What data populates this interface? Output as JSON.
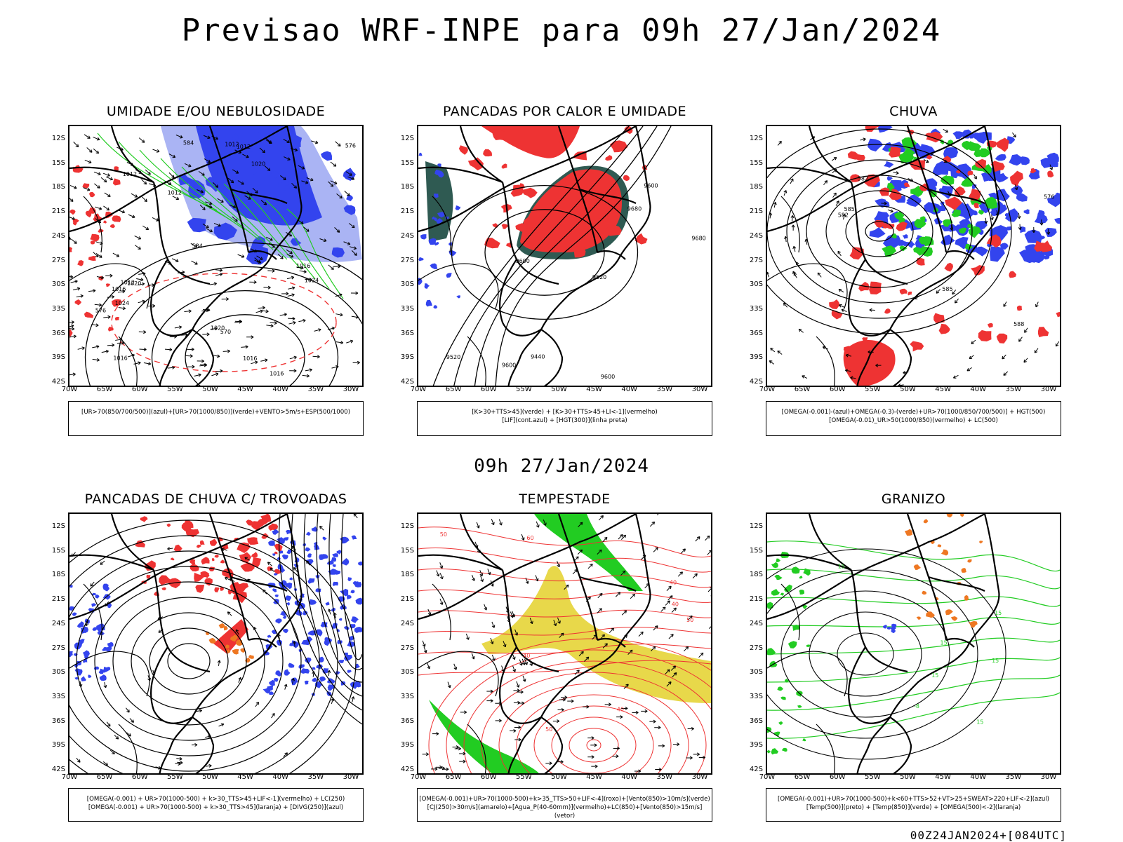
{
  "title": "Previsao WRF-INPE  para 09h 27/Jan/2024",
  "mid_title": "09h 27/Jan/2024",
  "footer": "00Z24JAN2024+[084UTC]",
  "y_ticks": [
    "12S",
    "15S",
    "18S",
    "21S",
    "24S",
    "27S",
    "30S",
    "33S",
    "36S",
    "39S",
    "42S"
  ],
  "x_ticks": [
    "70W",
    "65W",
    "60W",
    "55W",
    "50W",
    "45W",
    "40W",
    "35W",
    "30W"
  ],
  "colors": {
    "blue": "#3344ee",
    "light_blue": "#aab4f4",
    "green": "#22cc22",
    "red": "#ee3333",
    "dark_teal": "#2f5a52",
    "yellow": "#e8d84a",
    "orange": "#ee7722",
    "black": "#000000"
  },
  "panels": [
    {
      "id": "umidade",
      "title": "UMIDADE E/OU NEBULOSIDADE",
      "legend": [
        "[UR>70(850/700/500)](azul)+[UR>70(1000/850)](verde)+VENTO>5m/s+ESP(500/1000)"
      ],
      "contour_labels": [
        "1012",
        "1012",
        "1016",
        "1016",
        "1012",
        "1012",
        "1012",
        "570",
        "576",
        "1016",
        "1016",
        "1020",
        "1020",
        "1024",
        "1024",
        "1020",
        "584",
        "584",
        "576",
        "1016"
      ]
    },
    {
      "id": "pancadas-calor",
      "title": "PANCADAS POR CALOR E UMIDADE",
      "legend": [
        "[K>30+TTS>45](verde) + [K>30+TTS>45+LI<-1](vermelho)",
        "[LIF](cont.azul) + [HGT(300)](linha preta)"
      ],
      "contour_labels": [
        "9680",
        "9600",
        "9520",
        "9440",
        "9600",
        "9680",
        "9600",
        "9520",
        "9600"
      ]
    },
    {
      "id": "chuva",
      "title": "CHUVA",
      "legend": [
        "[OMEGA(-0.001)-(azul)+OMEGA(-0.3)-(verde)+UR>70(1000/850/700/500)] + HGT(500)",
        "[OMEGA(-0.01)_UR>50(1000/850)(vermelho) + LC(500)"
      ],
      "contour_labels": [
        "582",
        "576",
        "582",
        "588",
        "585",
        "585"
      ]
    },
    {
      "id": "pancadas-trovoadas",
      "title": "PANCADAS DE CHUVA C/ TROVOADAS",
      "legend": [
        "[OMEGA(-0.001) + UR>70(1000-500) + k>30_TTS>45+LIF<-1](vermelho) + LC(250)",
        "[OMEGA(-0.001) + UR>70(1000-500) + k>30_TTS>45](laranja) + [DIVG(250)](azul)"
      ],
      "contour_labels": []
    },
    {
      "id": "tempestade",
      "title": "TEMPESTADE",
      "legend": [
        "[OMEGA(-0.001)+UR>70(1000-500)+k>35_TTS>50+LIF<-4](roxo)+[Vento(850)>10m/s](verde)",
        "[CJ(250)>30m/s](amarelo)+[Agua_P(40-60mm)](vermelho)+LC(850)+[Vento(850)>15m/s](vetor)"
      ],
      "contour_labels": [
        "50",
        "40",
        "40",
        "50",
        "60",
        "40",
        "50",
        "40"
      ]
    },
    {
      "id": "granizo",
      "title": "GRANIZO",
      "legend": [
        "[OMEGA(-0.001)+UR>70(1000-500)+k<60+TTS>52+VT>25+SWEAT>220+LIF<-2](azul)",
        "[Temp(500)](preto) + [Temp(850)](verde) + [OMEGA(500)<-2](laranja)"
      ],
      "contour_labels": [
        "-8",
        "15",
        "15",
        "15",
        "15",
        "15",
        "15"
      ]
    }
  ]
}
